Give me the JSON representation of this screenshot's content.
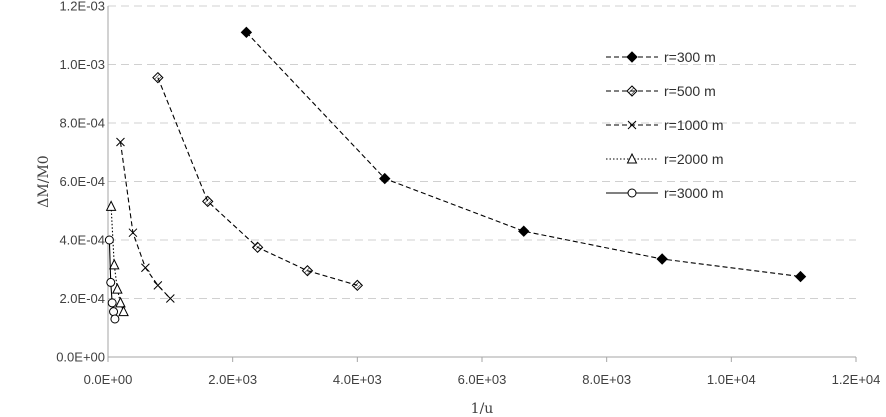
{
  "chart_data": {
    "type": "scatter",
    "xlabel": "1/u",
    "ylabel": "ΔM/M0",
    "xlim": [
      0,
      12000
    ],
    "ylim": [
      0,
      0.0012
    ],
    "x_ticks": [
      "0.0E+00",
      "2.0E+03",
      "4.0E+03",
      "6.0E+03",
      "8.0E+03",
      "1.0E+04",
      "1.2E+04"
    ],
    "y_ticks": [
      "0.0E+00",
      "2.0E-04",
      "4.0E-04",
      "6.0E-04",
      "8.0E-04",
      "1.0E-03",
      "1.2E-03"
    ],
    "grid": "horizontal-dashed",
    "legend_position": "right",
    "series": [
      {
        "name": "r=300 m",
        "marker": "filled-diamond",
        "line": "dashed",
        "x": [
          2220,
          4440,
          6670,
          8890,
          11110
        ],
        "y": [
          0.00111,
          0.00061,
          0.00043,
          0.000335,
          0.000275
        ]
      },
      {
        "name": "r=500 m",
        "marker": "hatched-diamond",
        "line": "dashed",
        "x": [
          800,
          1600,
          2400,
          3200,
          4000
        ],
        "y": [
          0.000955,
          0.000532,
          0.000375,
          0.000295,
          0.000245
        ]
      },
      {
        "name": "r=1000 m",
        "marker": "x",
        "line": "dashed",
        "x": [
          200,
          400,
          600,
          800,
          1000
        ],
        "y": [
          0.000735,
          0.000425,
          0.000305,
          0.000245,
          0.0002
        ]
      },
      {
        "name": "r=2000 m",
        "marker": "triangle",
        "line": "dotted",
        "x": [
          50,
          100,
          150,
          200,
          250
        ],
        "y": [
          0.000515,
          0.000315,
          0.000232,
          0.000185,
          0.000155
        ]
      },
      {
        "name": "r=3000 m",
        "marker": "circle",
        "line": "solid",
        "x": [
          22,
          44,
          67,
          89,
          111
        ],
        "y": [
          0.0004,
          0.000255,
          0.000185,
          0.000155,
          0.00013
        ]
      }
    ]
  }
}
